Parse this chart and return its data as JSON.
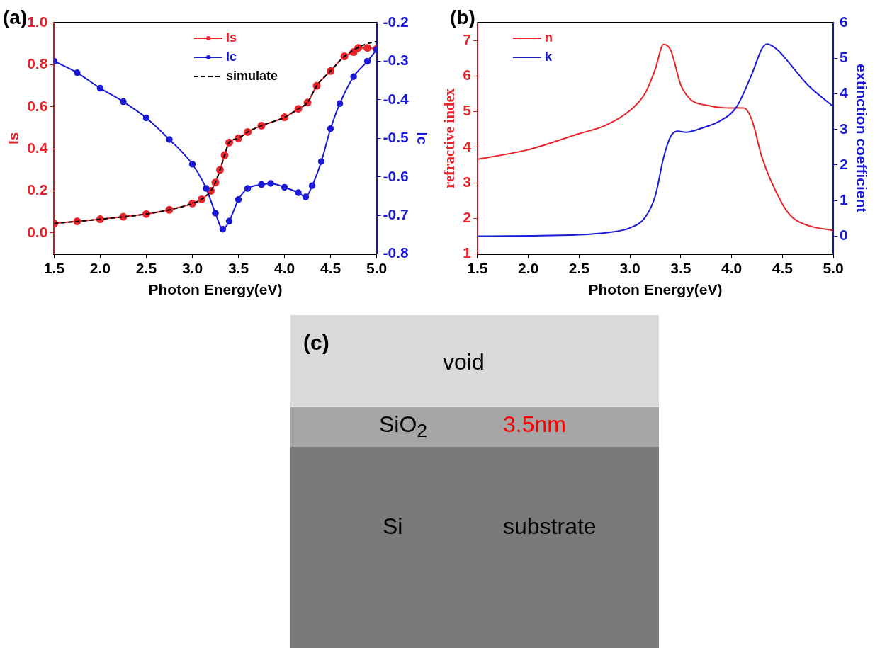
{
  "chart_data": [
    {
      "type": "line",
      "title": "(a)",
      "xlabel": "Photon Energy(eV)",
      "ylabel": "Is",
      "y2label": "Ic",
      "legend": "top",
      "xlim": [
        1.5,
        5.0
      ],
      "xticks": [
        1.5,
        {
          "value": 2,
          "label": "2.0"
        },
        2.5,
        {
          "value": 3,
          "label": "3.0"
        },
        3.5,
        {
          "value": 4,
          "label": "4.0"
        },
        4.5,
        {
          "value": 5,
          "label": "5.0"
        }
      ],
      "ylim": [
        -0.1,
        1.0
      ],
      "yticks": [
        {
          "value": 0,
          "label": "0.0"
        },
        0.2,
        0.4,
        0.6,
        0.8,
        {
          "value": 1,
          "label": "1.0"
        }
      ],
      "y2lim": [
        -0.8,
        -0.2
      ],
      "y2ticks": [
        -0.8,
        -0.7,
        -0.6,
        -0.5,
        -0.4,
        -0.3,
        -0.2
      ],
      "series": [
        {
          "name": "Is",
          "color": "#e8242b",
          "marker": "circle",
          "line_style": "solid",
          "x": [
            1.5,
            1.75,
            2.0,
            2.25,
            2.5,
            2.75,
            3.0,
            3.1,
            3.2,
            3.25,
            3.3,
            3.35,
            3.4,
            3.5,
            3.6,
            3.75,
            4.0,
            4.15,
            4.25,
            4.35,
            4.5,
            4.65,
            4.75,
            4.8,
            4.9,
            5.0
          ],
          "values": [
            0.045,
            0.055,
            0.065,
            0.077,
            0.09,
            0.11,
            0.14,
            0.16,
            0.2,
            0.24,
            0.3,
            0.37,
            0.43,
            0.45,
            0.48,
            0.51,
            0.55,
            0.59,
            0.62,
            0.7,
            0.77,
            0.84,
            0.86,
            0.88,
            0.88,
            0.875
          ]
        },
        {
          "name": "Ic",
          "color": "#1a1ad6",
          "axis": "y2",
          "marker": "circle",
          "line_style": "solid",
          "x": [
            1.5,
            1.75,
            2.0,
            2.25,
            2.5,
            2.75,
            3.0,
            3.15,
            3.25,
            3.33,
            3.4,
            3.5,
            3.6,
            3.75,
            3.85,
            4.0,
            4.15,
            4.23,
            4.3,
            4.4,
            4.5,
            4.6,
            4.75,
            4.9,
            5.0
          ],
          "values": [
            -0.3,
            -0.33,
            -0.37,
            -0.405,
            -0.447,
            -0.503,
            -0.567,
            -0.63,
            -0.694,
            -0.736,
            -0.715,
            -0.659,
            -0.63,
            -0.62,
            -0.617,
            -0.627,
            -0.641,
            -0.652,
            -0.623,
            -0.56,
            -0.475,
            -0.41,
            -0.34,
            -0.3,
            -0.27
          ]
        },
        {
          "name": "simulate",
          "color": "#000000",
          "marker": "none",
          "line_style": "dashed",
          "x": [
            1.5,
            2.0,
            2.5,
            2.75,
            3.0,
            3.1,
            3.2,
            3.25,
            3.3,
            3.35,
            3.4,
            3.5,
            3.6,
            3.75,
            4.0,
            4.15,
            4.25,
            4.35,
            4.5,
            4.65,
            4.75,
            4.9,
            5.0
          ],
          "values": [
            0.045,
            0.065,
            0.09,
            0.11,
            0.14,
            0.16,
            0.2,
            0.24,
            0.3,
            0.37,
            0.43,
            0.45,
            0.48,
            0.51,
            0.55,
            0.59,
            0.62,
            0.7,
            0.77,
            0.84,
            0.87,
            0.9,
            0.91
          ]
        }
      ]
    },
    {
      "type": "line",
      "title": "(b)",
      "xlabel": "Photon Energy(eV)",
      "ylabel": "refractive index",
      "y2label": "extinction coefficient",
      "legend": "top left",
      "xlim": [
        1.5,
        5.0
      ],
      "xticks": [
        1.5,
        {
          "value": 2,
          "label": "2.0"
        },
        2.5,
        {
          "value": 3,
          "label": "3.0"
        },
        3.5,
        {
          "value": 4,
          "label": "4.0"
        },
        4.5,
        {
          "value": 5,
          "label": "5.0"
        }
      ],
      "ylim": [
        1,
        7.5
      ],
      "yticks": [
        1,
        2,
        3,
        4,
        5,
        6,
        7
      ],
      "y2lim": [
        -0.5,
        6
      ],
      "y2ticks": [
        0,
        1,
        2,
        3,
        4,
        5,
        6
      ],
      "series": [
        {
          "name": "n",
          "color": "#e8242b",
          "x": [
            1.5,
            2.0,
            2.5,
            2.75,
            3.0,
            3.15,
            3.25,
            3.33,
            3.4,
            3.5,
            3.6,
            3.75,
            4.0,
            4.12,
            4.2,
            4.3,
            4.5,
            4.6,
            4.75,
            5.0
          ],
          "values": [
            3.66,
            3.93,
            4.38,
            4.6,
            5.03,
            5.52,
            6.2,
            6.89,
            6.73,
            5.75,
            5.33,
            5.18,
            5.1,
            5.1,
            4.76,
            3.7,
            2.4,
            2.02,
            1.8,
            1.66
          ]
        },
        {
          "name": "k",
          "color": "#1a1ad6",
          "axis": "y2",
          "x": [
            1.5,
            2.5,
            2.8,
            3.0,
            3.15,
            3.25,
            3.33,
            3.4,
            3.47,
            3.55,
            3.7,
            3.9,
            4.05,
            4.2,
            4.3,
            4.35,
            4.45,
            4.6,
            4.75,
            5.0
          ],
          "values": [
            0,
            0.04,
            0.11,
            0.23,
            0.53,
            1.14,
            2.2,
            2.8,
            2.95,
            2.92,
            3.03,
            3.26,
            3.64,
            4.56,
            5.28,
            5.4,
            5.24,
            4.75,
            4.25,
            3.64
          ]
        }
      ]
    },
    {
      "type": "other",
      "annotations": [
        "(c)",
        "void",
        "SiO$_{2}$",
        "3.5nm",
        "Si",
        "substrate"
      ]
    }
  ]
}
